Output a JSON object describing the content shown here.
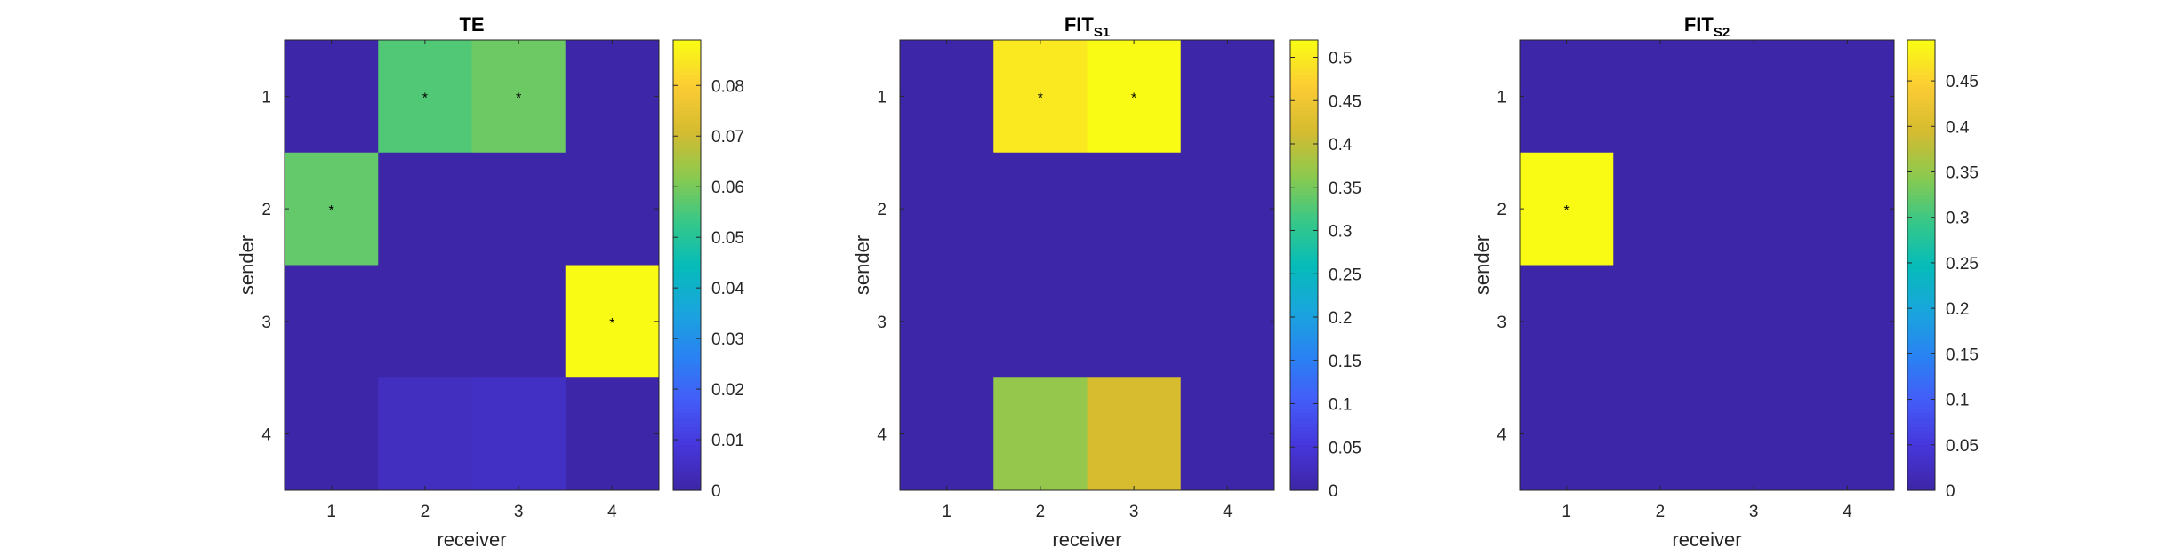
{
  "chart_data": [
    {
      "type": "heatmap",
      "title": "TE",
      "title_subscript": "",
      "xlabel": "receiver",
      "ylabel": "sender",
      "x_categories": [
        "1",
        "2",
        "3",
        "4"
      ],
      "y_categories": [
        "1",
        "2",
        "3",
        "4"
      ],
      "values": [
        [
          0,
          0.056,
          0.059,
          0
        ],
        [
          0.058,
          0,
          0,
          0
        ],
        [
          0,
          0,
          0,
          0.089
        ],
        [
          0,
          0.004,
          0.005,
          0
        ]
      ],
      "significant": [
        [
          false,
          true,
          true,
          false
        ],
        [
          true,
          false,
          false,
          false
        ],
        [
          false,
          false,
          false,
          true
        ],
        [
          false,
          false,
          false,
          false
        ]
      ],
      "significance_marker": "*",
      "colorbar": {
        "range": [
          0,
          0.089
        ],
        "ticks": [
          0,
          0.01,
          0.02,
          0.03,
          0.04,
          0.05,
          0.06,
          0.07,
          0.08
        ],
        "tick_labels": [
          "0",
          "0.01",
          "0.02",
          "0.03",
          "0.04",
          "0.05",
          "0.06",
          "0.07",
          "0.08"
        ]
      },
      "colormap": "parula"
    },
    {
      "type": "heatmap",
      "title": "FIT",
      "title_subscript": "S1",
      "xlabel": "receiver",
      "ylabel": "sender",
      "x_categories": [
        "1",
        "2",
        "3",
        "4"
      ],
      "y_categories": [
        "1",
        "2",
        "3",
        "4"
      ],
      "values": [
        [
          0,
          0.5,
          0.52,
          0
        ],
        [
          0,
          0,
          0,
          0
        ],
        [
          0,
          0,
          0,
          0
        ],
        [
          0,
          0.37,
          0.42,
          0
        ]
      ],
      "significant": [
        [
          false,
          true,
          true,
          false
        ],
        [
          false,
          false,
          false,
          false
        ],
        [
          false,
          false,
          false,
          false
        ],
        [
          false,
          false,
          false,
          false
        ]
      ],
      "significance_marker": "*",
      "colorbar": {
        "range": [
          0,
          0.52
        ],
        "ticks": [
          0,
          0.05,
          0.1,
          0.15,
          0.2,
          0.25,
          0.3,
          0.35,
          0.4,
          0.45,
          0.5
        ],
        "tick_labels": [
          "0",
          "0.05",
          "0.1",
          "0.15",
          "0.2",
          "0.25",
          "0.3",
          "0.35",
          "0.4",
          "0.45",
          "0.5"
        ]
      },
      "colormap": "parula"
    },
    {
      "type": "heatmap",
      "title": "FIT",
      "title_subscript": "S2",
      "xlabel": "receiver",
      "ylabel": "sender",
      "x_categories": [
        "1",
        "2",
        "3",
        "4"
      ],
      "y_categories": [
        "1",
        "2",
        "3",
        "4"
      ],
      "values": [
        [
          0,
          0,
          0,
          0
        ],
        [
          0.495,
          0,
          0,
          0
        ],
        [
          0,
          0,
          0,
          0
        ],
        [
          0,
          0,
          0,
          0
        ]
      ],
      "significant": [
        [
          false,
          false,
          false,
          false
        ],
        [
          true,
          false,
          false,
          false
        ],
        [
          false,
          false,
          false,
          false
        ],
        [
          false,
          false,
          false,
          false
        ]
      ],
      "significance_marker": "*",
      "colorbar": {
        "range": [
          0,
          0.495
        ],
        "ticks": [
          0,
          0.05,
          0.1,
          0.15,
          0.2,
          0.25,
          0.3,
          0.35,
          0.4,
          0.45
        ],
        "tick_labels": [
          "0",
          "0.05",
          "0.1",
          "0.15",
          "0.2",
          "0.25",
          "0.3",
          "0.35",
          "0.4",
          "0.45"
        ]
      },
      "colormap": "parula"
    }
  ]
}
